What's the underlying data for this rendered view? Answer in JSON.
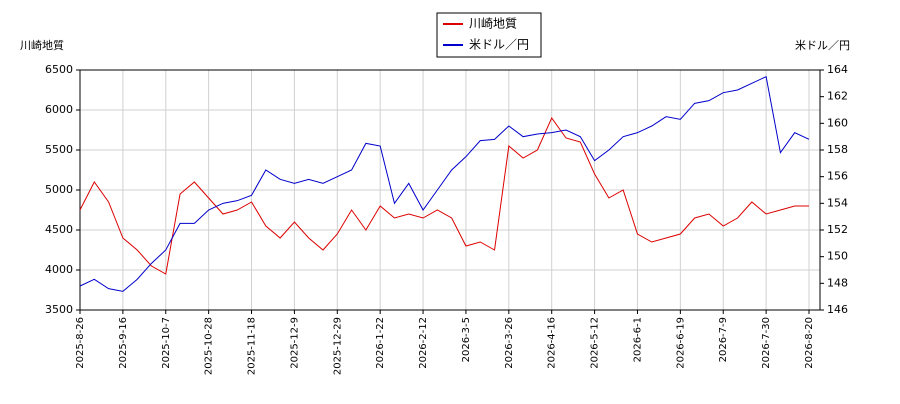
{
  "chart_data": {
    "type": "line",
    "y_label": "川崎地質",
    "y2_label": "米ドル／円",
    "categories": [
      "2025-8-26",
      null,
      null,
      "2025-9-16",
      null,
      null,
      "2025-10-7",
      null,
      null,
      "2025-10-28",
      null,
      null,
      "2025-11-18",
      null,
      null,
      "2025-12-9",
      null,
      null,
      "2025-12-29",
      null,
      null,
      "2026-1-22",
      null,
      null,
      "2026-2-12",
      null,
      null,
      "2026-3-5",
      null,
      null,
      "2026-3-26",
      null,
      null,
      "2026-4-16",
      null,
      null,
      "2026-5-12",
      null,
      null,
      "2026-6-1",
      null,
      null,
      "2026-6-19",
      null,
      null,
      "2026-7-9",
      null,
      null,
      "2026-7-30",
      null,
      null,
      "2026-8-20"
    ],
    "series": [
      {
        "name": "川崎地質",
        "color": "#dd0000",
        "values": [
          4750,
          5100,
          4850,
          4400,
          4250,
          4050,
          3950,
          4950,
          5100,
          4900,
          4700,
          4750,
          4850,
          4550,
          4400,
          4600,
          4400,
          4250,
          4450,
          4750,
          4500,
          4800,
          4650,
          4700,
          4650,
          4750,
          4650,
          4300,
          4350,
          4250,
          5550,
          5400,
          5500,
          5900,
          5650,
          5600,
          5200,
          4900,
          5000,
          4450,
          4350,
          4400,
          4450,
          4650,
          4700,
          4550,
          4650,
          4850,
          4700,
          4750,
          4800,
          4800
        ]
      },
      {
        "name": "米ドル／円",
        "color": "#0000cc",
        "axis": "y2",
        "values": [
          147.8,
          148.3,
          147.6,
          147.4,
          148.3,
          149.5,
          150.5,
          152.5,
          152.5,
          153.5,
          154.0,
          154.2,
          154.6,
          156.5,
          155.8,
          155.5,
          155.8,
          155.5,
          156.0,
          156.5,
          158.5,
          158.3,
          154.0,
          155.5,
          153.5,
          155.0,
          156.5,
          157.5,
          158.7,
          158.8,
          159.8,
          159.0,
          159.2,
          159.3,
          159.5,
          159.0,
          157.2,
          158.0,
          159.0,
          159.3,
          159.8,
          160.5,
          160.3,
          161.5,
          161.7,
          162.3,
          162.5,
          163.0,
          163.5,
          157.8,
          159.3,
          158.8
        ]
      }
    ],
    "ylim": [
      3500,
      6500
    ],
    "yticks": [
      3500,
      4000,
      4500,
      5000,
      5500,
      6000,
      6500
    ],
    "y2lim": [
      146,
      164
    ],
    "y2ticks": [
      146,
      148,
      150,
      152,
      154,
      156,
      158,
      160,
      162,
      164
    ],
    "grid": true
  }
}
